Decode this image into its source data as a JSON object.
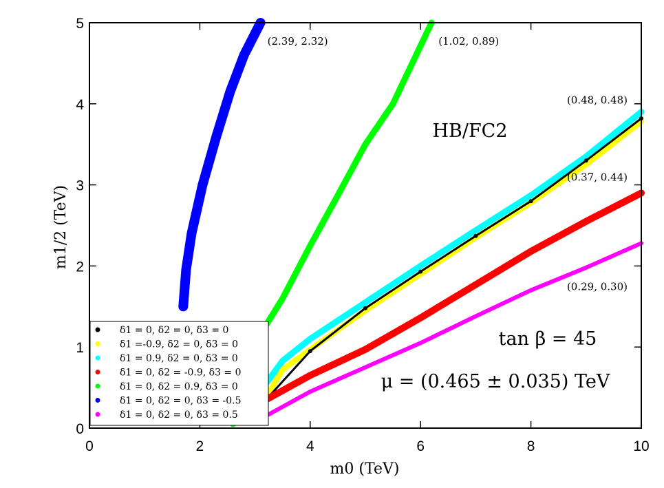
{
  "chart_data": {
    "type": "scatter",
    "xlabel": "m0 (TeV)",
    "ylabel": "m1/2 (TeV)",
    "xlim": [
      0,
      10
    ],
    "ylim": [
      0,
      5
    ],
    "x_ticks": [
      "0",
      "2",
      "4",
      "6",
      "8",
      "10"
    ],
    "y_ticks": [
      "0",
      "1",
      "2",
      "3",
      "4",
      "5"
    ],
    "grid": false,
    "legend_position": "bottom-left",
    "annotations": {
      "label": "HB/FC2",
      "tanbeta": "tan β = 45",
      "mu": "μ = (0.465 ± 0.035) TeV"
    },
    "series": [
      {
        "name": "δ1 = 0, δ2 = 0, δ3 = 0",
        "color": "#000000",
        "endpoint_label": "",
        "points": [
          [
            3.2,
            0.35
          ],
          [
            4,
            0.95
          ],
          [
            5,
            1.48
          ],
          [
            6,
            1.93
          ],
          [
            7,
            2.37
          ],
          [
            8,
            2.8
          ],
          [
            9,
            3.3
          ],
          [
            10,
            3.82
          ]
        ]
      },
      {
        "name": "δ1 =-0.9, δ2 = 0, δ3 = 0",
        "color": "#ffff00",
        "endpoint_label": "",
        "points": [
          [
            3.2,
            0.38
          ],
          [
            3.5,
            0.72
          ],
          [
            4,
            0.97
          ],
          [
            5,
            1.45
          ],
          [
            6,
            1.9
          ],
          [
            7,
            2.35
          ],
          [
            8,
            2.78
          ],
          [
            9,
            3.25
          ],
          [
            10,
            3.78
          ]
        ]
      },
      {
        "name": "δ1 = 0.9, δ2 = 0, δ3 = 0",
        "color": "#00ffff",
        "endpoint_label": "(0.48, 0.48)",
        "points": [
          [
            3.2,
            0.55
          ],
          [
            3.5,
            0.83
          ],
          [
            4,
            1.1
          ],
          [
            5,
            1.55
          ],
          [
            6,
            2.0
          ],
          [
            7,
            2.44
          ],
          [
            8,
            2.87
          ],
          [
            9,
            3.35
          ],
          [
            10,
            3.9
          ]
        ]
      },
      {
        "name": "δ1 = 0, δ2 = -0.9, δ3 = 0",
        "color": "#ff0000",
        "endpoint_label": "(0.37, 0.44)",
        "points": [
          [
            3.2,
            0.35
          ],
          [
            4,
            0.65
          ],
          [
            5,
            0.97
          ],
          [
            6,
            1.36
          ],
          [
            7,
            1.77
          ],
          [
            8,
            2.18
          ],
          [
            9,
            2.55
          ],
          [
            10,
            2.9
          ]
        ]
      },
      {
        "name": "δ1 = 0, δ2 = 0.9, δ3 = 0",
        "color": "#00ff00",
        "endpoint_label": "(1.02, 0.89)",
        "points": [
          [
            2.6,
            0.05
          ],
          [
            2.8,
            0.65
          ],
          [
            3.0,
            1.05
          ],
          [
            3.5,
            1.6
          ],
          [
            4,
            2.25
          ],
          [
            4.5,
            2.87
          ],
          [
            5,
            3.5
          ],
          [
            5.5,
            4.0
          ],
          [
            6.2,
            5.0
          ]
        ]
      },
      {
        "name": "δ1 = 0, δ2 = 0, δ3 = -0.5",
        "color": "#0000ff",
        "endpoint_label": "(2.39, 2.32)",
        "points": [
          [
            1.7,
            1.5
          ],
          [
            1.75,
            1.95
          ],
          [
            1.85,
            2.4
          ],
          [
            2.05,
            3.0
          ],
          [
            2.3,
            3.6
          ],
          [
            2.55,
            4.15
          ],
          [
            2.8,
            4.6
          ],
          [
            3.1,
            5.0
          ]
        ]
      },
      {
        "name": "δ1 = 0, δ2 = 0, δ3 = 0.5",
        "color": "#ff00ff",
        "endpoint_label": "(0.29, 0.30)",
        "points": [
          [
            3.2,
            0.15
          ],
          [
            4,
            0.45
          ],
          [
            5,
            0.75
          ],
          [
            6,
            1.05
          ],
          [
            7,
            1.38
          ],
          [
            8,
            1.7
          ],
          [
            9,
            1.98
          ],
          [
            10,
            2.28
          ]
        ]
      }
    ]
  }
}
